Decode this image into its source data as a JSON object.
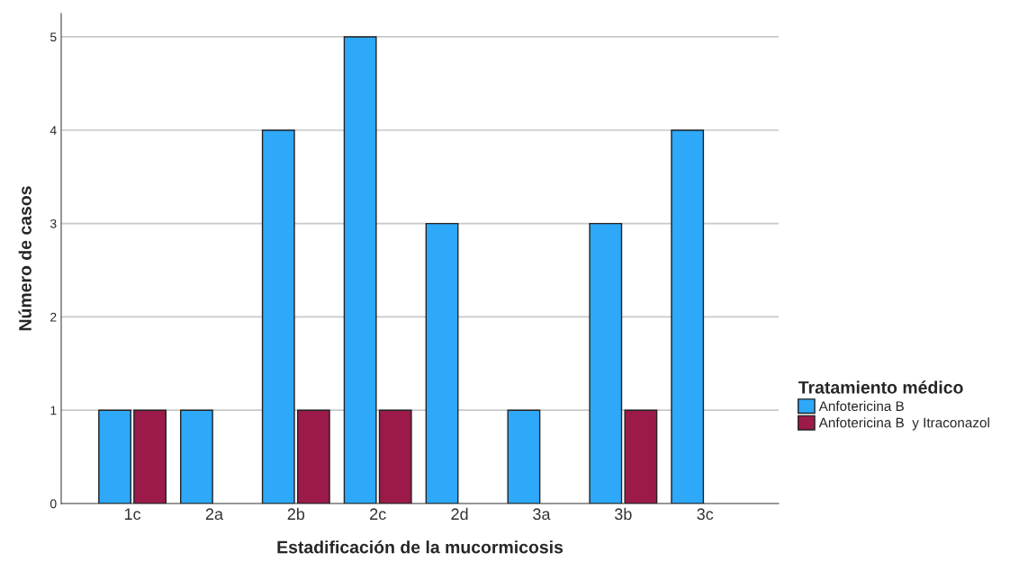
{
  "chart_data": {
    "type": "bar",
    "xlabel": "Estadificación de la mucormicosis",
    "ylabel": "Número de casos",
    "legend_title": "Tratamiento médico",
    "categories": [
      "1c",
      "2a",
      "2b",
      "2c",
      "2d",
      "3a",
      "3b",
      "3c"
    ],
    "series": [
      {
        "name": "Anfotericina B",
        "color": "#2ea8f8",
        "values": [
          1,
          1,
          4,
          5,
          3,
          1,
          3,
          4
        ]
      },
      {
        "name": "Anfotericina B  y Itraconazol",
        "color": "#9b1a4a",
        "values": [
          1,
          null,
          1,
          1,
          null,
          null,
          1,
          null
        ]
      }
    ],
    "ylim": [
      0,
      5.25
    ],
    "yticks": [
      0,
      1,
      2,
      3,
      4,
      5
    ],
    "grid": "y",
    "legend": "right"
  }
}
